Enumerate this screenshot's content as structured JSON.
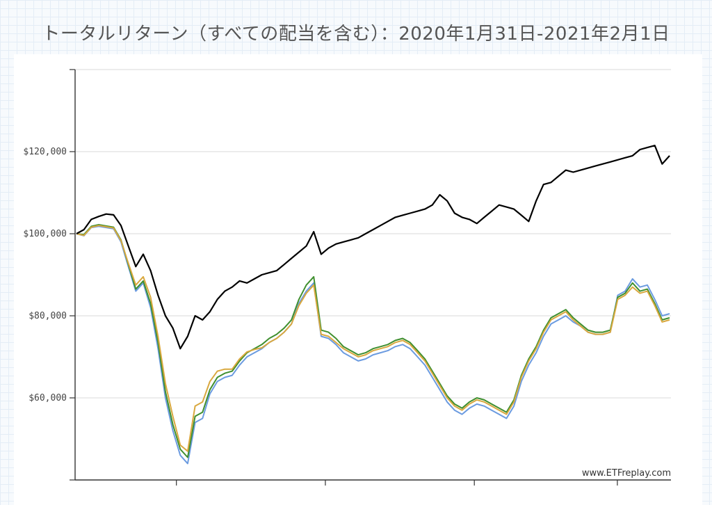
{
  "chart_data": {
    "type": "line",
    "title": "トータルリターン（すべての配当を含む）：2020年1月31日-2021年2月1日",
    "xlabel": "",
    "ylabel": "",
    "ylim": [
      40000,
      140000
    ],
    "yticks": [
      {
        "value": 60000,
        "label": "$60,000"
      },
      {
        "value": 80000,
        "label": "$80,000"
      },
      {
        "value": 100000,
        "label": "$100,000"
      },
      {
        "value": 120000,
        "label": "$120,000"
      }
    ],
    "grid": true,
    "watermark": "www.ETFreplay.com",
    "series": [
      {
        "color": "#000000",
        "values": [
          100000,
          101000,
          103500,
          104200,
          104800,
          104600,
          102000,
          97000,
          92000,
          95000,
          91000,
          85000,
          80000,
          77000,
          72000,
          75000,
          80000,
          79000,
          81000,
          84000,
          86000,
          87000,
          88500,
          88000,
          89000,
          90000,
          90500,
          91000,
          92500,
          94000,
          95500,
          97000,
          100500,
          95000,
          96500,
          97500,
          98000,
          98500,
          99000,
          100000,
          101000,
          102000,
          103000,
          104000,
          104500,
          105000,
          105500,
          106000,
          107000,
          109500,
          108000,
          105000,
          104000,
          103500,
          102500,
          104000,
          105500,
          107000,
          106500,
          106000,
          104500,
          103000,
          108000,
          112000,
          112500,
          114000,
          115500,
          115000,
          115500,
          116000,
          116500,
          117000,
          117500,
          118000,
          118500,
          119000,
          120500,
          121000,
          121500,
          117000,
          119000
        ]
      },
      {
        "color": "#6b9be0",
        "values": [
          100000,
          99500,
          101500,
          101800,
          101500,
          101200,
          98000,
          92000,
          86000,
          88000,
          82000,
          72000,
          60000,
          52000,
          46000,
          44000,
          54000,
          55000,
          61000,
          64000,
          65000,
          65500,
          68000,
          70000,
          71000,
          72000,
          73500,
          74500,
          76000,
          78000,
          83000,
          86000,
          88000,
          75000,
          74500,
          73000,
          71000,
          70000,
          69000,
          69500,
          70500,
          71000,
          71500,
          72500,
          73000,
          72000,
          70000,
          68000,
          65000,
          62000,
          59000,
          57000,
          56000,
          57500,
          58500,
          58000,
          57000,
          56000,
          55000,
          58000,
          64000,
          68000,
          71000,
          75000,
          78000,
          79000,
          80000,
          78500,
          77500,
          76000,
          75500,
          75500,
          76000,
          85000,
          86000,
          89000,
          87000,
          87500,
          84000,
          80000,
          80500
        ]
      },
      {
        "color": "#3f8f2f",
        "values": [
          100000,
          99800,
          101800,
          102200,
          101900,
          101600,
          98500,
          92500,
          86500,
          88500,
          83000,
          73500,
          61500,
          53500,
          47500,
          45500,
          55500,
          56500,
          62000,
          65000,
          66000,
          66500,
          69000,
          71000,
          72000,
          73000,
          74500,
          75500,
          77000,
          79000,
          84000,
          87500,
          89500,
          76500,
          76000,
          74500,
          72500,
          71500,
          70500,
          71000,
          72000,
          72500,
          73000,
          74000,
          74500,
          73500,
          71500,
          69500,
          66500,
          63500,
          60500,
          58500,
          57500,
          59000,
          60000,
          59500,
          58500,
          57500,
          56500,
          59500,
          65500,
          69500,
          72500,
          76500,
          79500,
          80500,
          81500,
          79500,
          78000,
          76500,
          76000,
          76000,
          76500,
          84500,
          85500,
          88000,
          86000,
          86500,
          83000,
          79000,
          79500
        ]
      },
      {
        "color": "#d9a83f",
        "values": [
          100000,
          99600,
          101600,
          102000,
          101700,
          101400,
          98300,
          92800,
          87500,
          89500,
          84500,
          75000,
          63500,
          55500,
          48500,
          47000,
          58000,
          59000,
          64000,
          66500,
          67000,
          67000,
          69500,
          71200,
          71800,
          72200,
          73500,
          74500,
          76000,
          78000,
          82500,
          85500,
          87500,
          75500,
          75000,
          73500,
          72000,
          71000,
          70000,
          70500,
          71500,
          72000,
          72500,
          73500,
          74000,
          73000,
          71000,
          69000,
          66000,
          63000,
          60000,
          58000,
          57000,
          58500,
          59500,
          59000,
          58000,
          57000,
          56000,
          59000,
          65000,
          69000,
          72000,
          76000,
          79000,
          80000,
          81000,
          79000,
          77500,
          76000,
          75500,
          75500,
          76000,
          84000,
          85000,
          87000,
          85500,
          86000,
          82500,
          78500,
          79000
        ]
      }
    ]
  }
}
